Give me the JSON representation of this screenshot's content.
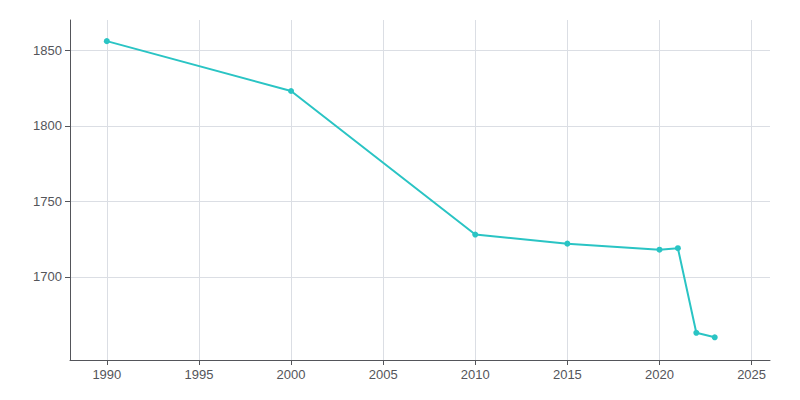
{
  "chart_data": {
    "type": "line",
    "x": [
      1990,
      2000,
      2010,
      2015,
      2020,
      2021,
      2022,
      2023
    ],
    "values": [
      1856,
      1823,
      1728,
      1722,
      1718,
      1719,
      1663,
      1660
    ],
    "color": "#2ac4c4",
    "marker": "circle",
    "xlim": [
      1988,
      2026
    ],
    "ylim": [
      1645,
      1870
    ],
    "xticks": [
      1990,
      1995,
      2000,
      2005,
      2010,
      2015,
      2020,
      2025
    ],
    "yticks": [
      1700,
      1750,
      1800,
      1850
    ],
    "grid": true
  }
}
